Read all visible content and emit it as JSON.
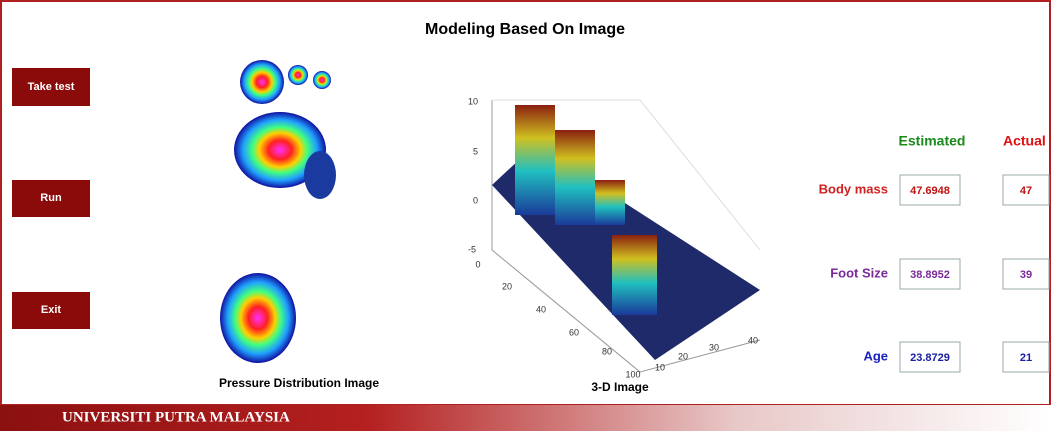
{
  "title": "Modeling Based On Image",
  "buttons": [
    "Take test",
    "Run",
    "Exit"
  ],
  "pressure_image": {
    "caption": "Pressure Distribution Image"
  },
  "plot_3d": {
    "caption": "3-D  Image",
    "z_ticks": [
      10,
      5,
      0,
      -5
    ],
    "y_ticks": [
      0,
      20,
      40,
      60,
      80,
      100
    ],
    "x_ticks": [
      10,
      20,
      30,
      40
    ]
  },
  "results": {
    "estimated_header": "Estimated",
    "actual_header": "Actual",
    "rows": [
      {
        "label": "Body mass",
        "estimated": 47.6948,
        "actual": 47
      },
      {
        "label": "Foot Size",
        "estimated": 38.8952,
        "actual": 39
      },
      {
        "label": "Age",
        "estimated": 23.8729,
        "actual": 21
      }
    ]
  },
  "footer": {
    "university": "UNIVERSITI PUTRA MALAYSIA"
  }
}
